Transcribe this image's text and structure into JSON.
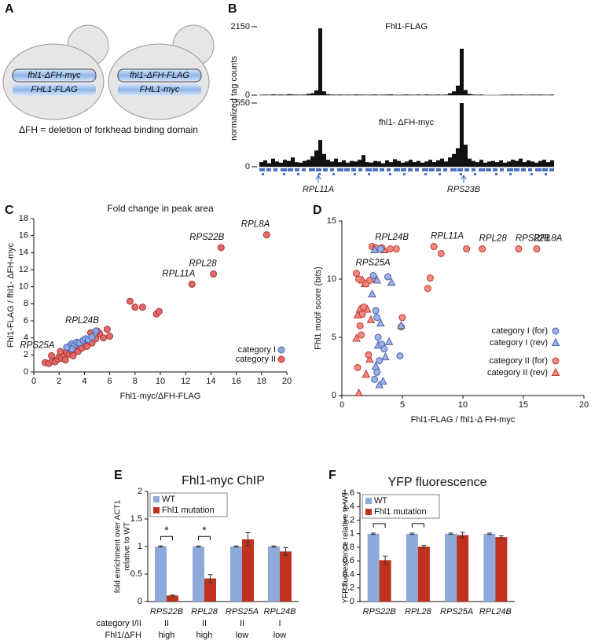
{
  "panel_labels": [
    "A",
    "B",
    "C",
    "D",
    "E",
    "F"
  ],
  "diagram": {
    "cells": [
      {
        "plasmid": "fhl1-ΔFH-myc",
        "genome": "FHL1-FLAG"
      },
      {
        "plasmid": "fhl1-ΔFH-FLAG",
        "genome": "FHL1-myc"
      }
    ],
    "caption": "ΔFH = deletion of forkhead binding domain"
  },
  "tracks": {
    "ylabel": "normalized tag counts",
    "panels": [
      {
        "name": "Fhl1-FLAG",
        "ylim": [
          0,
          2150
        ],
        "yticks": [
          0,
          2150
        ],
        "values": [
          12,
          18,
          10,
          25,
          15,
          20,
          14,
          30,
          22,
          16,
          12,
          18,
          40,
          60,
          150,
          2100,
          120,
          30,
          18,
          14,
          20,
          12,
          16,
          10,
          22,
          18,
          14,
          12,
          16,
          20,
          10,
          14,
          18,
          25,
          12,
          10,
          16,
          20,
          14,
          12,
          18,
          10,
          22,
          16,
          14,
          20,
          12,
          18,
          60,
          120,
          300,
          1460,
          160,
          40,
          20,
          14,
          18,
          null,
          null,
          null,
          null,
          10,
          16,
          12,
          20,
          14,
          18,
          10,
          12,
          16,
          14,
          20,
          12,
          10,
          18
        ]
      },
      {
        "name": "fhl1- ΔFH-myc",
        "ylim": [
          0,
          550
        ],
        "yticks": [
          0,
          550
        ],
        "values": [
          40,
          55,
          30,
          70,
          45,
          35,
          60,
          50,
          80,
          40,
          35,
          50,
          60,
          90,
          140,
          230,
          110,
          60,
          45,
          70,
          40,
          55,
          35,
          50,
          45,
          60,
          100,
          40,
          35,
          50,
          45,
          30,
          55,
          40,
          65,
          50,
          35,
          45,
          60,
          40,
          50,
          35,
          45,
          60,
          40,
          55,
          70,
          45,
          80,
          110,
          160,
          550,
          190,
          70,
          50,
          40,
          60,
          35,
          45,
          50,
          40,
          55,
          35,
          45,
          60,
          50,
          70,
          40,
          55,
          45,
          35,
          50,
          60,
          40,
          55
        ]
      }
    ],
    "genes": [
      "RPL11A",
      "RPS23B"
    ]
  },
  "chart_data": [
    {
      "type": "scatter",
      "title": "Fold change in peak area",
      "xlabel": "Fhl1-myc/ΔFH-FLAG",
      "ylabel": "Fhl1-FLAG / fhl1- ΔFH-myc",
      "xlim": [
        0,
        20
      ],
      "xticks": [
        0,
        2,
        4,
        6,
        8,
        10,
        12,
        14,
        16,
        18,
        20
      ],
      "ylim": [
        0,
        18
      ],
      "yticks": [
        0,
        2,
        4,
        6,
        8,
        10,
        12,
        14,
        16,
        18
      ],
      "legend": "lower right",
      "series": [
        {
          "name": "category I",
          "color": "#8ea6e4",
          "edgecolor": "#4a62a8",
          "marker": "circle",
          "x": [
            2.8,
            3.0,
            3.2,
            3.4,
            3.6,
            3.9,
            4.1,
            4.3,
            4.6,
            4.9,
            3.0,
            2.6
          ],
          "y": [
            3.0,
            3.3,
            3.1,
            3.5,
            3.4,
            3.7,
            3.9,
            3.8,
            4.1,
            4.8,
            2.7,
            2.9
          ]
        },
        {
          "name": "category II",
          "color": "#e26a6a",
          "edgecolor": "#a83232",
          "marker": "circle",
          "x": [
            0.9,
            1.2,
            1.5,
            1.7,
            1.9,
            2.0,
            2.2,
            2.4,
            2.5,
            2.6,
            2.8,
            3.0,
            3.1,
            3.3,
            3.5,
            3.6,
            3.8,
            4.0,
            4.2,
            4.4,
            4.6,
            4.9,
            5.2,
            5.5,
            5.8,
            6.0,
            7.6,
            8.0,
            8.6,
            9.7,
            9.9,
            12.5,
            14.2,
            14.8,
            18.4,
            3.2,
            2.1,
            4.5,
            5.0,
            1.4
          ],
          "y": [
            1.1,
            1.0,
            1.3,
            1.2,
            1.5,
            1.8,
            1.6,
            2.0,
            1.4,
            2.3,
            2.1,
            2.5,
            1.9,
            2.7,
            2.4,
            3.0,
            2.8,
            3.3,
            3.0,
            3.6,
            3.4,
            3.9,
            4.5,
            4.0,
            5.0,
            4.2,
            8.3,
            7.6,
            7.6,
            6.8,
            7.1,
            10.3,
            11.5,
            14.6,
            16.1,
            3.2,
            2.4,
            4.6,
            4.8,
            1.9
          ]
        }
      ],
      "annotations": [
        {
          "text": "RPL8A",
          "x": 18.4,
          "y": 16.1
        },
        {
          "text": "RPS22B",
          "x": 14.8,
          "y": 14.6
        },
        {
          "text": "RPL28",
          "x": 14.2,
          "y": 11.5
        },
        {
          "text": "RPL11A",
          "x": 12.5,
          "y": 10.3
        },
        {
          "text": "RPL24B",
          "x": 4.9,
          "y": 4.8
        },
        {
          "text": "RPS25A",
          "x": 1.4,
          "y": 1.9
        }
      ]
    },
    {
      "type": "scatter",
      "xlabel": "Fhl1-FLAG / fhl1-Δ FH-myc",
      "ylabel": "Fhl1 motif score (bits)",
      "xlim": [
        0,
        20
      ],
      "xticks": [
        0,
        5,
        10,
        15,
        20
      ],
      "ylim": [
        0,
        15
      ],
      "yticks": [
        0,
        5,
        10,
        15
      ],
      "legend": "lower right",
      "series": [
        {
          "name": "category I (for)",
          "color": "#9db2ea",
          "edgecolor": "#4a62a8",
          "marker": "circle",
          "x": [
            2.6,
            2.8,
            3.0,
            3.1,
            2.9,
            3.2,
            3.3,
            3.5,
            3.8,
            2.7,
            4.8,
            2.9
          ],
          "y": [
            10.3,
            7.3,
            5.0,
            3.0,
            2.0,
            12.6,
            4.4,
            4.0,
            10.2,
            1.4,
            3.4,
            6.7
          ]
        },
        {
          "name": "category I (rev)",
          "color": "#9db2ea",
          "edgecolor": "#4a62a8",
          "marker": "triangle",
          "x": [
            2.5,
            2.7,
            2.9,
            3.0,
            3.2,
            3.4,
            3.6,
            3.9,
            4.1,
            4.9,
            2.8,
            3.1
          ],
          "y": [
            8.7,
            12.5,
            9.9,
            4.3,
            6.2,
            1.2,
            3.3,
            4.6,
            9.7,
            6.0,
            2.5,
            0.9
          ]
        },
        {
          "name": "category II (for)",
          "color": "#ee8a84",
          "edgecolor": "#c0392b",
          "marker": "circle",
          "x": [
            1.2,
            1.4,
            1.3,
            1.5,
            1.6,
            1.8,
            2.0,
            2.2,
            2.5,
            2.8,
            3.3,
            4.0,
            4.5,
            5.0,
            4.9,
            7.1,
            7.3,
            7.6,
            8.2,
            10.3,
            11.6,
            14.6,
            16.1,
            1.7,
            2.3
          ],
          "y": [
            10.5,
            10.0,
            2.4,
            6.0,
            5.2,
            7.6,
            9.6,
            3.5,
            12.8,
            12.7,
            12.7,
            12.6,
            12.6,
            6.7,
            5.9,
            9.2,
            10.1,
            12.8,
            12.2,
            12.6,
            12.6,
            12.6,
            12.6,
            7.0,
            9.9
          ]
        },
        {
          "name": "category II (rev)",
          "color": "#ee8a84",
          "edgecolor": "#c0392b",
          "marker": "triangle",
          "x": [
            1.4,
            1.2,
            1.5,
            1.7,
            1.9,
            2.1,
            2.3,
            2.6,
            2.0,
            3.5,
            2.4,
            1.3
          ],
          "y": [
            0.2,
            4.9,
            7.4,
            9.9,
            9.6,
            7.4,
            3.1,
            10.0,
            1.8,
            12.5,
            6.5,
            6.9
          ]
        }
      ],
      "annotations": [
        {
          "text": "RPL24B",
          "x": 3.0,
          "y": 12.7
        },
        {
          "text": "RPS25A",
          "x": 1.4,
          "y": 10.5
        },
        {
          "text": "RPL11A",
          "x": 7.6,
          "y": 12.8
        },
        {
          "text": "RPL28",
          "x": 11.6,
          "y": 12.6
        },
        {
          "text": "RPS22B",
          "x": 14.6,
          "y": 12.6
        },
        {
          "text": "RPL8A",
          "x": 16.1,
          "y": 12.6
        }
      ]
    },
    {
      "type": "bar",
      "title": "Fhl1-myc ChIP",
      "ylabel": [
        "fold enrichment over ACT1",
        "relative to WT"
      ],
      "categories": [
        "RPS22B",
        "RPL28",
        "RPS25A",
        "RPL24B"
      ],
      "ylim": [
        0,
        2
      ],
      "yticks": [
        0,
        0.5,
        1,
        1.5,
        2
      ],
      "legend": "upper left",
      "series": [
        {
          "name": "WT",
          "color": "#8eaadb",
          "values": [
            1,
            1,
            1,
            1
          ],
          "errors": [
            0.01,
            0.01,
            0.01,
            0.01
          ]
        },
        {
          "name": "Fhl1 mutation",
          "color": "#c0321e",
          "values": [
            0.11,
            0.42,
            1.13,
            0.91
          ],
          "errors": [
            0.01,
            0.07,
            0.12,
            0.07
          ]
        }
      ],
      "significance": [
        "*",
        "*",
        null,
        null
      ],
      "table_rows": [
        {
          "label": "category I/II",
          "values": [
            "II",
            "II",
            "II",
            "I"
          ]
        },
        {
          "label": "Fhl1/ΔFH",
          "values": [
            "high",
            "high",
            "low",
            "low"
          ]
        }
      ]
    },
    {
      "type": "bar",
      "title": "YFP fluorescence",
      "ylabel": [
        "YFP fluorescence relative to WT"
      ],
      "categories": [
        "RPS22B",
        "RPL28",
        "RPS25A",
        "RPL24B"
      ],
      "ylim": [
        0,
        1.6
      ],
      "yticks": [
        0,
        0.2,
        0.4,
        0.6,
        0.8,
        1,
        1.2,
        1.4,
        1.6
      ],
      "legend": "upper left",
      "series": [
        {
          "name": "WT",
          "color": "#8eaadb",
          "values": [
            1,
            1,
            1,
            1
          ],
          "errors": [
            0.01,
            0.01,
            0.01,
            0.01
          ]
        },
        {
          "name": "Fhl1 mutation",
          "color": "#c0321e",
          "values": [
            0.61,
            0.81,
            0.98,
            0.95
          ],
          "errors": [
            0.06,
            0.02,
            0.04,
            0.02
          ]
        }
      ],
      "significance": [
        "*",
        "*",
        null,
        null
      ]
    }
  ]
}
